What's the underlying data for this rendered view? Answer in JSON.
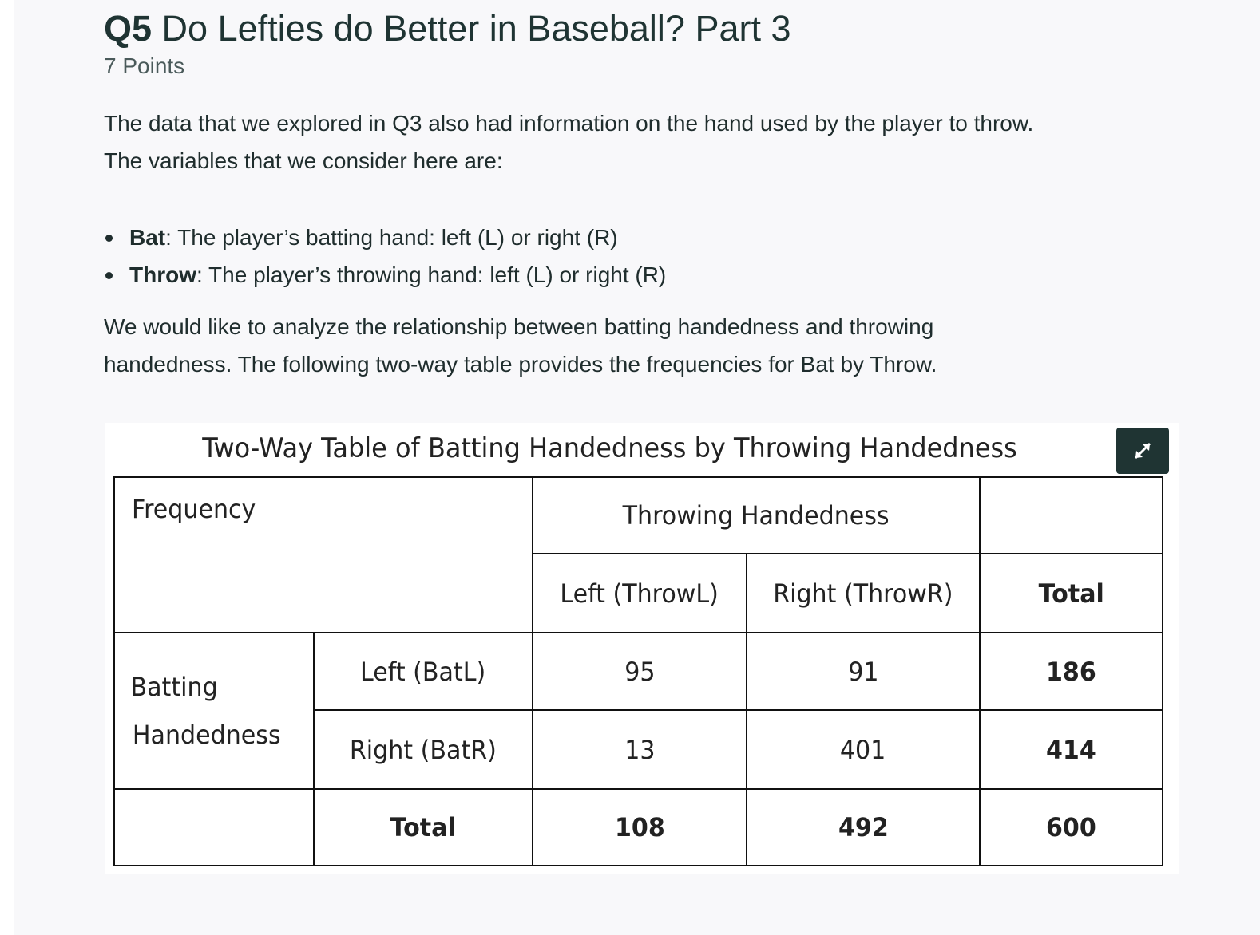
{
  "question": {
    "number": "Q5",
    "title": "Do Lefties do Better in Baseball? Part 3",
    "points": "7 Points"
  },
  "intro": {
    "line1": "The data that we explored in Q3 also had information on the hand used by the player to throw.",
    "line2": "The variables that we consider here are:"
  },
  "variables": [
    {
      "name": "Bat",
      "desc": ": The player’s batting hand: left (L) or right (R)"
    },
    {
      "name": "Throw",
      "desc": ": The player’s throwing hand: left (L) or right (R)"
    }
  ],
  "analysis": {
    "line1": "We would like to analyze the relationship between batting handedness and throwing",
    "line2": "handedness. The following two-way table provides the frequencies for Bat by Throw."
  },
  "table": {
    "title": "Two-Way Table of Batting Handedness by Throwing Handedness",
    "corner": "Frequency",
    "col_group": "Throwing Handedness",
    "col_headers": [
      "Left (ThrowL)",
      "Right (ThrowR)"
    ],
    "total_label": "Total",
    "row_group_line1": "Batting",
    "row_group_line2": "Handedness",
    "rows": [
      {
        "label": "Left (BatL)",
        "values": [
          "95",
          "91"
        ],
        "total": "186"
      },
      {
        "label": "Right (BatR)",
        "values": [
          "13",
          "401"
        ],
        "total": "414"
      }
    ],
    "col_totals": [
      "108",
      "492"
    ],
    "grand_total": "600"
  },
  "icons": {
    "expand": "expand-arrows-icon"
  },
  "colors": {
    "heading": "#1f3433",
    "button_bg": "#1f3433",
    "page_bg": "#f8f8fa"
  }
}
